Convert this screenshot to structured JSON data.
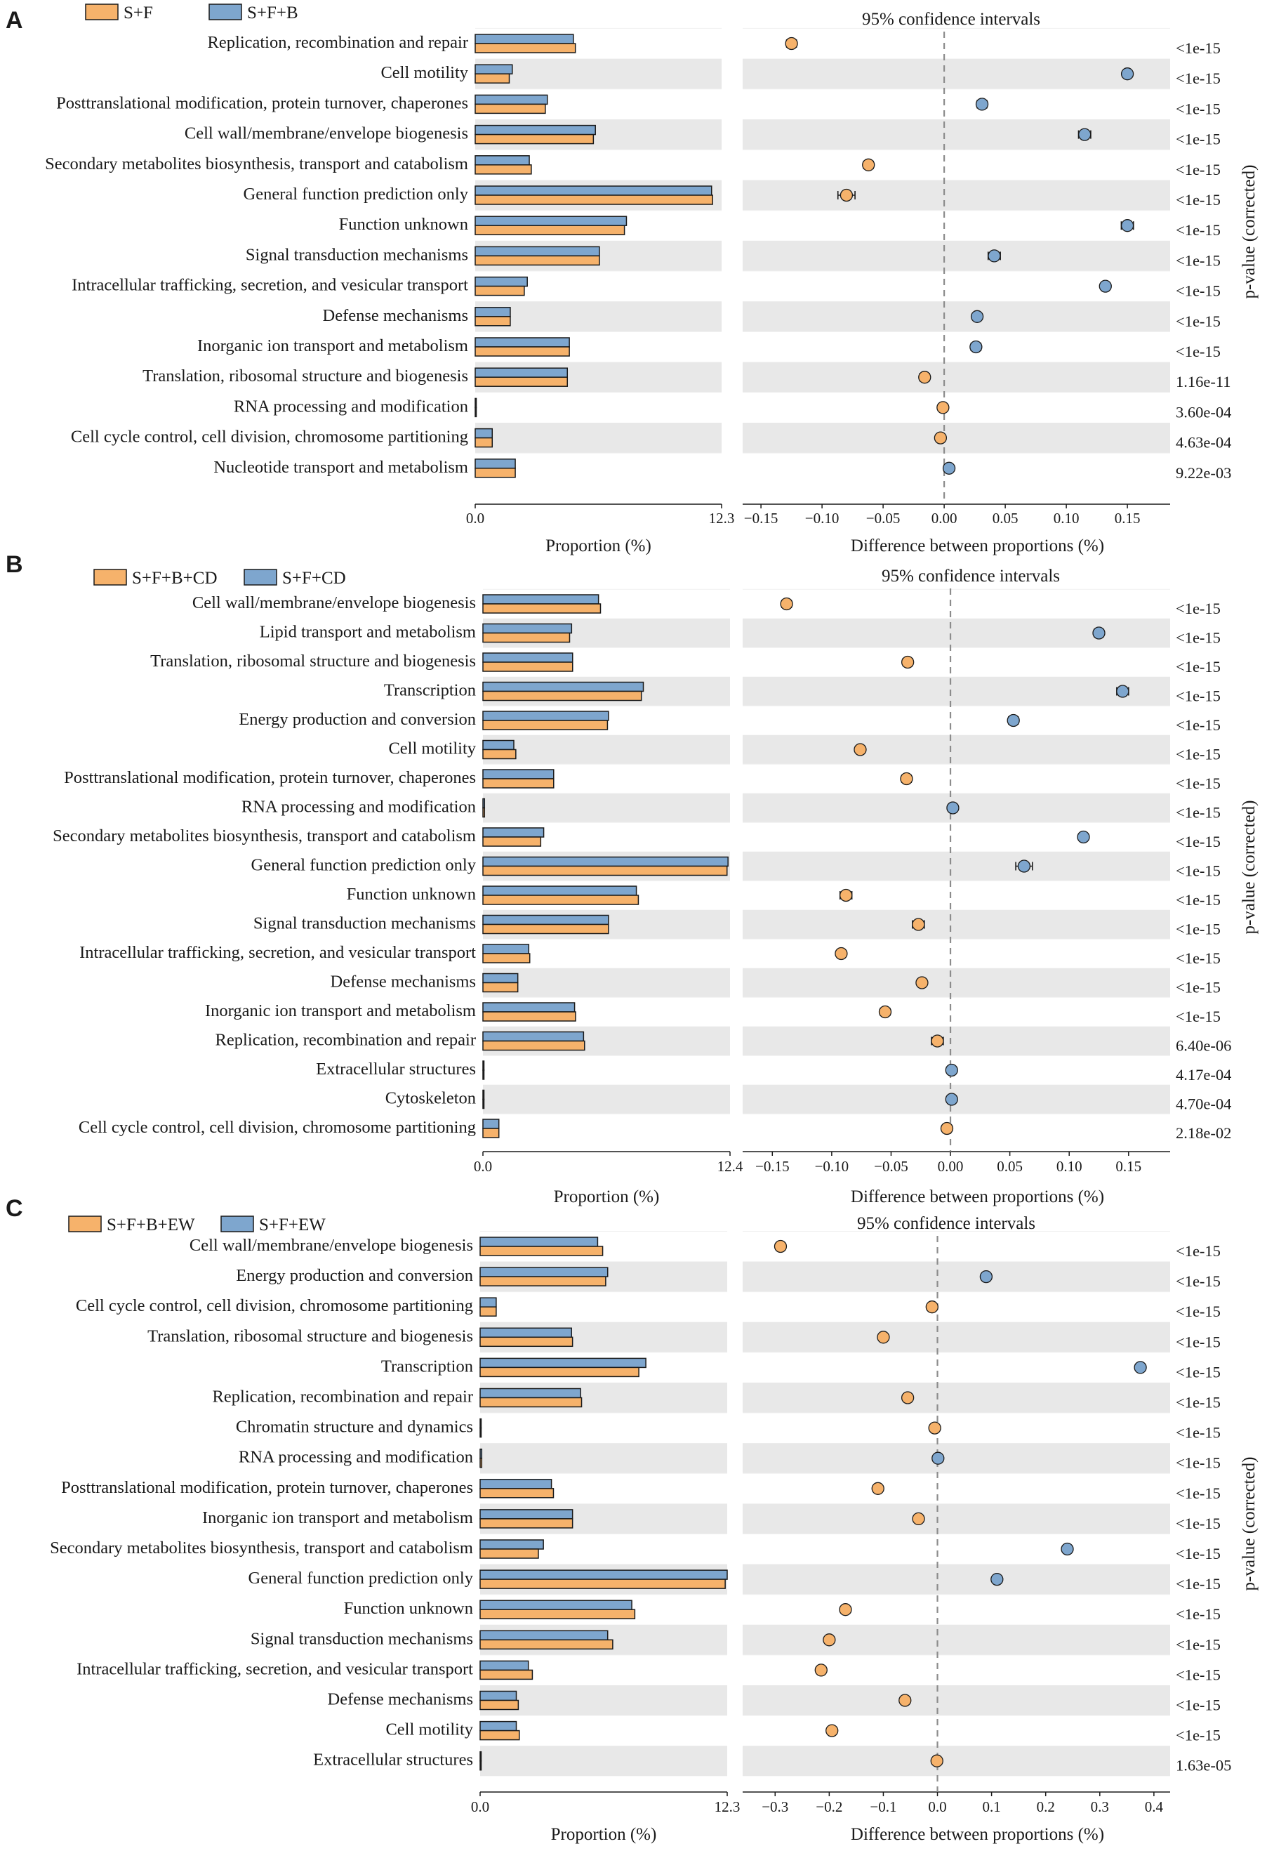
{
  "colors": {
    "orange": "#F6B26B",
    "blue": "#7EA6CE",
    "stripe": "#E8E8E8",
    "edge": "#1a1a1a",
    "dash": "#8c8c8c"
  },
  "chart_data": [
    {
      "type": "bar",
      "panel": "A",
      "legend": [
        "S+F",
        "S+F+B"
      ],
      "ci_title": "95% confidence intervals",
      "bar_xlabel": "Proportion (%)",
      "diff_xlabel": "Difference between proportions (%)",
      "pvalue_label": "p-value (corrected)",
      "bar_max": 12.3,
      "bar_ticks": [
        "0.0",
        "12.3"
      ],
      "diff_range": [
        -0.165,
        0.185
      ],
      "diff_ticks": [
        -0.15,
        -0.1,
        -0.05,
        0.0,
        0.05,
        0.1,
        0.15
      ],
      "diff_tick_labels": [
        "−0.15",
        "−0.10",
        "−0.05",
        "0.00",
        "0.05",
        "0.10",
        "0.15"
      ],
      "categories": [
        "Replication, recombination and repair",
        "Cell motility",
        "Posttranslational modification, protein turnover, chaperones",
        "Cell wall/membrane/envelope biogenesis",
        "Secondary metabolites biosynthesis, transport and catabolism",
        "General function prediction only",
        "Function unknown",
        "Signal transduction mechanisms",
        "Intracellular trafficking, secretion, and vesicular transport",
        "Defense mechanisms",
        "Inorganic ion transport and metabolism",
        "Translation, ribosomal structure and biogenesis",
        "RNA processing and modification",
        "Cell cycle control, cell division, chromosome partitioning",
        "Nucleotide transport and metabolism"
      ],
      "series": [
        {
          "name": "S+F+B",
          "values": [
            4.9,
            1.85,
            3.6,
            6.0,
            2.7,
            11.8,
            7.55,
            6.2,
            2.6,
            1.75,
            4.7,
            4.6,
            0.05,
            0.85,
            2.0
          ]
        },
        {
          "name": "S+F",
          "values": [
            5.0,
            1.7,
            3.5,
            5.9,
            2.8,
            11.85,
            7.45,
            6.2,
            2.45,
            1.75,
            4.7,
            4.6,
            0.05,
            0.85,
            2.0
          ]
        }
      ],
      "diff": [
        -0.125,
        0.15,
        0.031,
        0.115,
        -0.062,
        -0.08,
        0.15,
        0.041,
        0.132,
        0.027,
        0.026,
        -0.016,
        -0.001,
        -0.003,
        0.004
      ],
      "diff_err": [
        0.004,
        0.003,
        0.004,
        0.005,
        0.004,
        0.007,
        0.005,
        0.005,
        0.003,
        0.003,
        0.004,
        0.004,
        0.002,
        0.002,
        0.002
      ],
      "pvalues": [
        "<1e-15",
        "<1e-15",
        "<1e-15",
        "<1e-15",
        "<1e-15",
        "<1e-15",
        "<1e-15",
        "<1e-15",
        "<1e-15",
        "<1e-15",
        "<1e-15",
        "1.16e-11",
        "3.60e-04",
        "4.63e-04",
        "9.22e-03"
      ]
    },
    {
      "type": "bar",
      "panel": "B",
      "legend": [
        "S+F+B+CD",
        "S+F+CD"
      ],
      "ci_title": "95% confidence intervals",
      "bar_xlabel": "Proportion (%)",
      "diff_xlabel": "Difference between proportions (%)",
      "pvalue_label": "p-value (corrected)",
      "bar_max": 12.4,
      "bar_ticks": [
        "0.0",
        "12.4"
      ],
      "diff_range": [
        -0.175,
        0.185
      ],
      "diff_ticks": [
        -0.15,
        -0.1,
        -0.05,
        0.0,
        0.05,
        0.1,
        0.15
      ],
      "diff_tick_labels": [
        "−0.15",
        "−0.10",
        "−0.05",
        "0.00",
        "0.05",
        "0.10",
        "0.15"
      ],
      "categories": [
        "Cell wall/membrane/envelope biogenesis",
        "Lipid transport and metabolism",
        "Translation, ribosomal structure and biogenesis",
        "Transcription",
        "Energy production and conversion",
        "Cell motility",
        "Posttranslational modification, protein turnover, chaperones",
        "RNA processing and modification",
        "Secondary metabolites biosynthesis, transport and catabolism",
        "General function prediction only",
        "Function unknown",
        "Signal transduction mechanisms",
        "Intracellular trafficking, secretion, and vesicular transport",
        "Defense mechanisms",
        "Inorganic ion transport and metabolism",
        "Replication, recombination and repair",
        "Extracellular structures",
        "Cytoskeleton",
        "Cell cycle control, cell division, chromosome partitioning"
      ],
      "series": [
        {
          "name": "S+F+CD",
          "values": [
            5.8,
            4.45,
            4.5,
            8.05,
            6.3,
            1.55,
            3.55,
            0.08,
            3.05,
            12.3,
            7.7,
            6.3,
            2.3,
            1.75,
            4.6,
            5.05,
            0.05,
            0.05,
            0.8
          ]
        },
        {
          "name": "S+F+B+CD",
          "values": [
            5.9,
            4.35,
            4.5,
            7.95,
            6.25,
            1.65,
            3.55,
            0.08,
            2.9,
            12.25,
            7.8,
            6.3,
            2.35,
            1.75,
            4.65,
            5.1,
            0.05,
            0.05,
            0.8
          ]
        }
      ],
      "diff": [
        -0.138,
        0.125,
        -0.036,
        0.145,
        0.053,
        -0.076,
        -0.037,
        0.002,
        0.112,
        0.062,
        -0.088,
        -0.027,
        -0.092,
        -0.024,
        -0.055,
        -0.011,
        0.001,
        0.001,
        -0.003
      ],
      "diff_err": [
        0.004,
        0.004,
        0.004,
        0.005,
        0.004,
        0.003,
        0.004,
        0.002,
        0.003,
        0.007,
        0.005,
        0.005,
        0.003,
        0.003,
        0.004,
        0.005,
        0.002,
        0.002,
        0.002
      ],
      "pvalues": [
        "<1e-15",
        "<1e-15",
        "<1e-15",
        "<1e-15",
        "<1e-15",
        "<1e-15",
        "<1e-15",
        "<1e-15",
        "<1e-15",
        "<1e-15",
        "<1e-15",
        "<1e-15",
        "<1e-15",
        "<1e-15",
        "<1e-15",
        "6.40e-06",
        "4.17e-04",
        "4.70e-04",
        "2.18e-02"
      ]
    },
    {
      "type": "bar",
      "panel": "C",
      "legend": [
        "S+F+B+EW",
        "S+F+EW"
      ],
      "ci_title": "95% confidence intervals",
      "bar_xlabel": "Proportion (%)",
      "diff_xlabel": "Difference between proportions (%)",
      "pvalue_label": "p-value (corrected)",
      "bar_max": 12.3,
      "bar_ticks": [
        "0.0",
        "12.3"
      ],
      "diff_range": [
        -0.36,
        0.43
      ],
      "diff_ticks": [
        -0.3,
        -0.2,
        -0.1,
        0.0,
        0.1,
        0.2,
        0.3,
        0.4
      ],
      "diff_tick_labels": [
        "−0.3",
        "−0.2",
        "−0.1",
        "0.0",
        "0.1",
        "0.2",
        "0.3",
        "0.4"
      ],
      "categories": [
        "Cell wall/membrane/envelope biogenesis",
        "Energy production and conversion",
        "Cell cycle control, cell division, chromosome partitioning",
        "Translation, ribosomal structure and biogenesis",
        "Transcription",
        "Replication, recombination and repair",
        "Chromatin structure and dynamics",
        "RNA processing and modification",
        "Posttranslational modification, protein turnover, chaperones",
        "Inorganic ion transport and metabolism",
        "Secondary metabolites biosynthesis, transport and catabolism",
        "General function prediction only",
        "Function unknown",
        "Signal transduction mechanisms",
        "Intracellular trafficking, secretion, and vesicular transport",
        "Defense mechanisms",
        "Cell motility",
        "Extracellular structures"
      ],
      "series": [
        {
          "name": "S+F+EW",
          "values": [
            5.85,
            6.35,
            0.8,
            4.55,
            8.25,
            5.0,
            0.05,
            0.08,
            3.55,
            4.6,
            3.15,
            12.3,
            7.55,
            6.35,
            2.4,
            1.8,
            1.8,
            0.05
          ]
        },
        {
          "name": "S+F+B+EW",
          "values": [
            6.1,
            6.25,
            0.8,
            4.6,
            7.9,
            5.05,
            0.05,
            0.08,
            3.65,
            4.6,
            2.9,
            12.2,
            7.7,
            6.6,
            2.6,
            1.9,
            1.95,
            0.05
          ]
        }
      ],
      "diff": [
        -0.29,
        0.09,
        -0.01,
        -0.1,
        0.375,
        -0.055,
        -0.005,
        0.001,
        -0.11,
        -0.035,
        0.24,
        0.11,
        -0.17,
        -0.2,
        -0.215,
        -0.06,
        -0.195,
        -0.001
      ],
      "diff_err": [
        0.004,
        0.004,
        0.003,
        0.004,
        0.005,
        0.004,
        0.002,
        0.002,
        0.004,
        0.004,
        0.004,
        0.005,
        0.004,
        0.004,
        0.004,
        0.003,
        0.004,
        0.002
      ],
      "pvalues": [
        "<1e-15",
        "<1e-15",
        "<1e-15",
        "<1e-15",
        "<1e-15",
        "<1e-15",
        "<1e-15",
        "<1e-15",
        "<1e-15",
        "<1e-15",
        "<1e-15",
        "<1e-15",
        "<1e-15",
        "<1e-15",
        "<1e-15",
        "<1e-15",
        "<1e-15",
        "1.63e-05"
      ]
    }
  ]
}
